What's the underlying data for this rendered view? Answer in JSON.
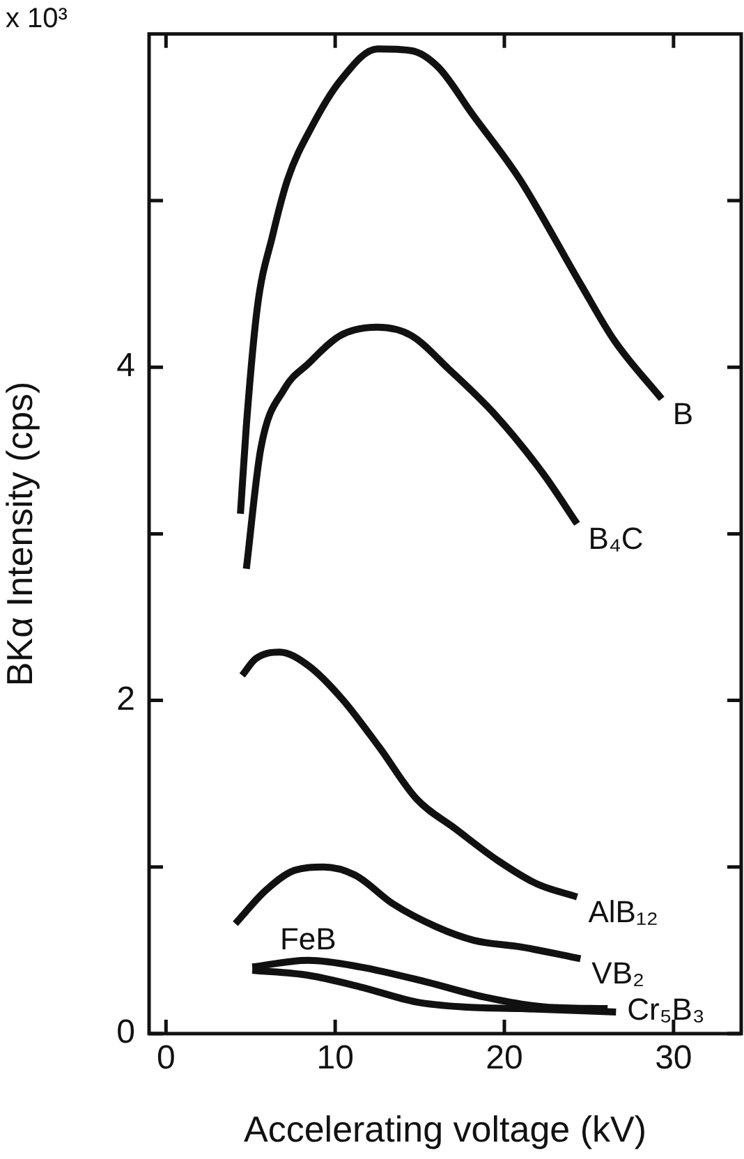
{
  "chart_data": {
    "type": "line",
    "xlabel": "Accelerating voltage (kV)",
    "ylabel": "BKα Intensity (cps)",
    "annotations": [
      "x 10³"
    ],
    "xlim": [
      -1,
      34
    ],
    "xticks": [
      0,
      10,
      20,
      30
    ],
    "ylim": [
      0,
      6
    ],
    "yticks": [
      0,
      {
        "value": 1,
        "label": null
      },
      2,
      {
        "value": 3,
        "label": null
      },
      4,
      {
        "value": 5,
        "label": null
      }
    ],
    "marker": "none",
    "line_style": "solid",
    "legend": false,
    "series": [
      {
        "name": "B",
        "color": "#111111",
        "x": [
          4.4,
          4.75,
          5.4,
          6.3,
          7.2,
          8.6,
          10.3,
          12.5,
          14.5,
          16.1,
          18.1,
          20.9,
          24.5,
          26.5,
          29.3
        ],
        "values": [
          3.12,
          3.65,
          4.36,
          4.79,
          5.13,
          5.44,
          5.72,
          5.91,
          5.9,
          5.8,
          5.52,
          5.13,
          4.5,
          4.16,
          3.81
        ]
      },
      {
        "name": "B₄C",
        "color": "#111111",
        "x": [
          4.75,
          5.6,
          7.0,
          8.4,
          10.3,
          12.5,
          14.5,
          16.7,
          19.5,
          22.3,
          24.3
        ],
        "values": [
          2.79,
          3.51,
          3.87,
          4.02,
          4.19,
          4.24,
          4.19,
          3.99,
          3.71,
          3.36,
          3.06
        ]
      },
      {
        "name": "AlB₁₂",
        "color": "#111111",
        "x": [
          4.5,
          5.3,
          6.7,
          8.4,
          10.4,
          12.6,
          14.8,
          17.1,
          19.6,
          21.9,
          24.3
        ],
        "values": [
          2.15,
          2.25,
          2.29,
          2.21,
          2.01,
          1.72,
          1.41,
          1.23,
          1.04,
          0.9,
          0.82
        ]
      },
      {
        "name": "VB₂",
        "color": "#111111",
        "x": [
          4.1,
          5.9,
          7.6,
          9.3,
          11.2,
          13.4,
          16.0,
          18.2,
          21.0,
          24.5
        ],
        "values": [
          0.66,
          0.86,
          0.98,
          1.0,
          0.95,
          0.78,
          0.64,
          0.56,
          0.52,
          0.45
        ]
      },
      {
        "name": "FeB",
        "color": "#111111",
        "x": [
          5.1,
          8.4,
          11.5,
          15.4,
          18.8,
          22.4,
          26.1
        ],
        "values": [
          0.4,
          0.44,
          0.4,
          0.31,
          0.22,
          0.16,
          0.15
        ]
      },
      {
        "name": "Cr₅B₃",
        "color": "#111111",
        "x": [
          5.1,
          8.4,
          11.5,
          14.8,
          17.6,
          21.0,
          26.6
        ],
        "values": [
          0.38,
          0.35,
          0.28,
          0.19,
          0.16,
          0.15,
          0.13
        ]
      }
    ]
  }
}
